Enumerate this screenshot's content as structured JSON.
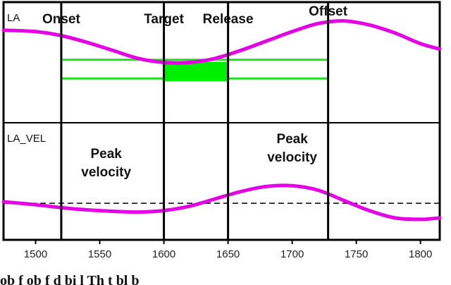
{
  "chart_data": {
    "type": "line",
    "x_ticks": [
      1500,
      1550,
      1600,
      1650,
      1700,
      1750,
      1800
    ],
    "xlim": [
      1475,
      1815
    ],
    "panels": [
      {
        "label": "LA",
        "series": [
          {
            "color": "#e600e6",
            "x": [
              1475,
              1500,
              1520,
              1540,
              1560,
              1580,
              1600,
              1620,
              1640,
              1660,
              1680,
              1700,
              1720,
              1740,
              1760,
              1780,
              1800,
              1815
            ],
            "y": [
              0.78,
              0.76,
              0.7,
              0.6,
              0.48,
              0.36,
              0.3,
              0.3,
              0.36,
              0.48,
              0.62,
              0.76,
              0.88,
              0.92,
              0.86,
              0.74,
              0.58,
              0.5
            ]
          }
        ],
        "guides": [
          {
            "kind": "range_lines",
            "x_from": 1520,
            "x_to": 1728,
            "y": [
              0.34,
              0.06
            ],
            "color": "#22dd22"
          },
          {
            "kind": "filled_range",
            "x_from": 1600,
            "x_to": 1650,
            "y_top": 0.31,
            "y_bottom": 0.02,
            "color": "#00ee00"
          }
        ],
        "ylim": [
          -0.6,
          1.2
        ]
      },
      {
        "label": "LA_VEL",
        "series": [
          {
            "color": "#e600e6",
            "x": [
              1475,
              1500,
              1520,
              1540,
              1560,
              1580,
              1600,
              1620,
              1640,
              1660,
              1680,
              1700,
              1720,
              1740,
              1760,
              1780,
              1800,
              1815
            ],
            "y": [
              0.02,
              -0.02,
              -0.06,
              -0.09,
              -0.11,
              -0.12,
              -0.1,
              -0.04,
              0.06,
              0.16,
              0.23,
              0.24,
              0.18,
              0.04,
              -0.1,
              -0.2,
              -0.22,
              -0.2
            ]
          }
        ],
        "zero_line": {
          "y": 0,
          "style": "dashed"
        },
        "ylim": [
          -0.5,
          1.1
        ]
      }
    ],
    "events": [
      {
        "label": "Onset",
        "x": 1520
      },
      {
        "label": "Target",
        "x": 1600
      },
      {
        "label": "Release",
        "x": 1650
      },
      {
        "label": "Offset",
        "x": 1728
      }
    ],
    "annotations": [
      {
        "lines": [
          "Peak",
          "velocity"
        ],
        "x": 1555,
        "y": 0.62
      },
      {
        "lines": [
          "Peak",
          "velocity"
        ],
        "x": 1700,
        "y": 0.82
      }
    ]
  },
  "caption_fragment": "ob  f   ob    f   d bi l   Th     t bl   b"
}
